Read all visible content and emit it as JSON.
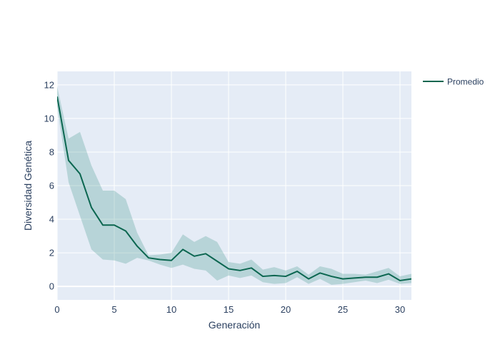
{
  "chart_data": {
    "type": "line",
    "title": "",
    "xlabel": "Generación",
    "ylabel": "Diversidad Genética",
    "xlim": [
      0,
      31
    ],
    "ylim": [
      -0.8,
      12.8
    ],
    "x_ticks": [
      0,
      5,
      10,
      15,
      20,
      25,
      30
    ],
    "y_ticks": [
      0,
      2,
      4,
      6,
      8,
      10,
      12
    ],
    "grid": true,
    "legend_position": "top-right",
    "colors": {
      "line": "#0b6650",
      "band": "#2e8b80",
      "plot_bg": "#e5ecf6",
      "grid": "#ffffff",
      "text": "#2a3f5f"
    },
    "x": [
      0,
      1,
      2,
      3,
      4,
      5,
      6,
      7,
      8,
      9,
      10,
      11,
      12,
      13,
      14,
      15,
      16,
      17,
      18,
      19,
      20,
      21,
      22,
      23,
      24,
      25,
      26,
      27,
      28,
      29,
      30,
      31
    ],
    "band_upper": [
      11.9,
      8.8,
      9.2,
      7.2,
      5.7,
      5.7,
      5.2,
      3.2,
      1.85,
      1.9,
      2.0,
      3.1,
      2.65,
      3.0,
      2.65,
      1.45,
      1.35,
      1.6,
      1.0,
      1.15,
      0.95,
      1.2,
      0.7,
      1.2,
      1.05,
      0.75,
      0.75,
      0.7,
      0.9,
      1.1,
      0.6,
      0.75
    ],
    "band_lower": [
      10.7,
      6.2,
      4.2,
      2.2,
      1.6,
      1.55,
      1.35,
      1.7,
      1.55,
      1.3,
      1.1,
      1.3,
      1.05,
      0.95,
      0.35,
      0.65,
      0.5,
      0.65,
      0.25,
      0.15,
      0.2,
      0.55,
      0.15,
      0.45,
      0.1,
      0.15,
      0.25,
      0.35,
      0.2,
      0.4,
      0.15,
      0.2
    ],
    "series": [
      {
        "name": "Promedio",
        "values": [
          11.3,
          7.5,
          6.7,
          4.7,
          3.65,
          3.65,
          3.3,
          2.4,
          1.7,
          1.6,
          1.55,
          2.2,
          1.8,
          1.95,
          1.5,
          1.05,
          0.95,
          1.1,
          0.6,
          0.65,
          0.6,
          0.9,
          0.45,
          0.8,
          0.6,
          0.45,
          0.5,
          0.55,
          0.55,
          0.75,
          0.35,
          0.45
        ]
      }
    ]
  }
}
